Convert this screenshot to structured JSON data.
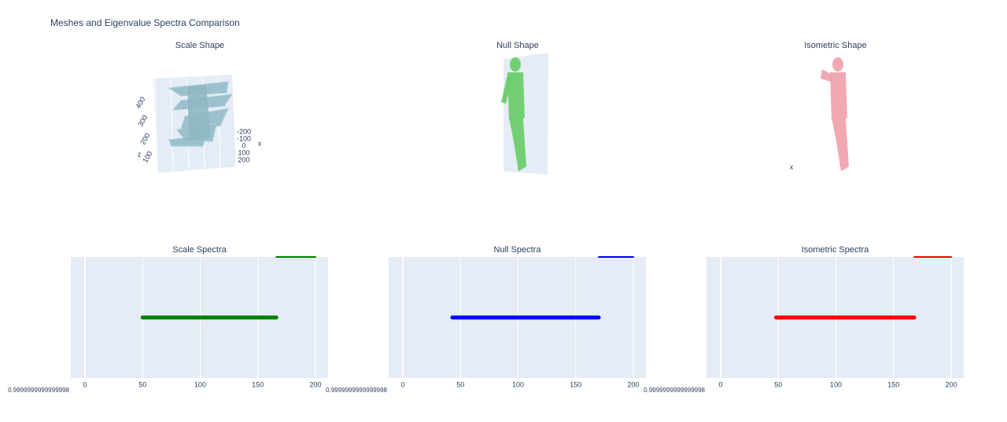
{
  "title": "Meshes and Eigenvalue Spectra Comparison",
  "chart_data": [
    {
      "type": "mesh3d",
      "title": "Scale Shape",
      "color": "#8fb8c4",
      "zticks": [
        100,
        200,
        300,
        400
      ],
      "xticks": [
        -200,
        -100,
        0,
        100,
        200
      ],
      "zlabel": "z",
      "xlabel": "x"
    },
    {
      "type": "mesh3d",
      "title": "Null Shape",
      "color": "#66cc66"
    },
    {
      "type": "mesh3d",
      "title": "Isometric Shape",
      "color": "#f0a0a8",
      "xlabel": "x"
    },
    {
      "type": "line",
      "title": "Scale Spectra",
      "xlim": [
        -12.3,
        210.9
      ],
      "xticks": [
        0,
        50,
        100,
        150,
        200
      ],
      "ylim": [
        0.9999999999999998,
        1.0000000000000002
      ],
      "yticks": [
        {
          "value": 0.9999999999999998,
          "label": "0.9999999999999998"
        }
      ],
      "series": [
        {
          "color": "green",
          "width": 5,
          "x": [
            50,
            166
          ],
          "values": [
            1,
            1
          ]
        },
        {
          "color": "green",
          "width": 2,
          "x": [
            166,
            200
          ],
          "values": [
            1.0000000000000002,
            1.0000000000000002
          ]
        }
      ]
    },
    {
      "type": "line",
      "title": "Null Spectra",
      "xlim": [
        -12.3,
        210.9
      ],
      "xticks": [
        0,
        50,
        100,
        150,
        200
      ],
      "ylim": [
        0.9999999999999998,
        1.0000000000000002
      ],
      "yticks": [
        {
          "value": 0.9999999999999998,
          "label": "0.9999999999999998"
        }
      ],
      "series": [
        {
          "color": "blue",
          "width": 5,
          "x": [
            43,
            170
          ],
          "values": [
            1,
            1
          ]
        },
        {
          "color": "blue",
          "width": 2,
          "x": [
            170,
            200
          ],
          "values": [
            1.0000000000000002,
            1.0000000000000002
          ]
        }
      ]
    },
    {
      "type": "line",
      "title": "Isometric Spectra",
      "xlim": [
        -12.3,
        210.9
      ],
      "xticks": [
        0,
        50,
        100,
        150,
        200
      ],
      "ylim": [
        0.9999999999999998,
        1.0000000000000002
      ],
      "yticks": [
        {
          "value": 0.9999999999999998,
          "label": "0.9999999999999998"
        }
      ],
      "series": [
        {
          "color": "red",
          "width": 5,
          "x": [
            48,
            168
          ],
          "values": [
            1,
            1
          ]
        },
        {
          "color": "red",
          "width": 2,
          "x": [
            168,
            200
          ],
          "values": [
            1.0000000000000002,
            1.0000000000000002
          ]
        }
      ]
    }
  ]
}
